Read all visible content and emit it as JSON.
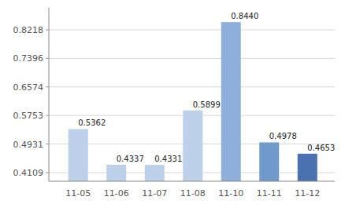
{
  "chart_data": {
    "type": "bar",
    "categories": [
      "11-05",
      "11-06",
      "11-07",
      "11-08",
      "11-10",
      "11-11",
      "11-12"
    ],
    "values": [
      0.5362,
      0.4337,
      0.4331,
      0.5899,
      0.844,
      0.4978,
      0.4653
    ],
    "value_labels": [
      "0.5362",
      "0.4337",
      "0.4331",
      "0.5899",
      "0.8440",
      "0.4978",
      "0.4653"
    ],
    "colors": [
      "#bdd0ea",
      "#bdd0ea",
      "#bdd0ea",
      "#bdd0ea",
      "#8eafdb",
      "#6f9acb",
      "#4a72b0"
    ],
    "ylim": [
      0.386,
      0.885
    ],
    "yticks": [
      0.4109,
      0.4931,
      0.5753,
      0.6574,
      0.7396,
      0.8218
    ],
    "grid": true,
    "data_labels": true
  }
}
